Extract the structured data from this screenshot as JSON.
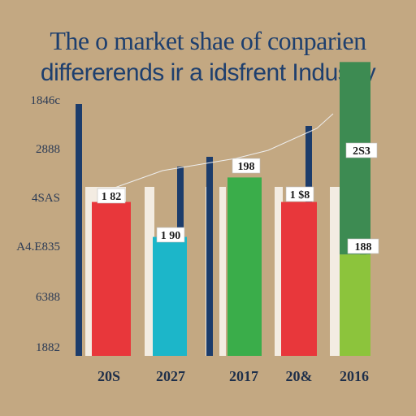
{
  "chart_data": {
    "type": "bar",
    "title_line1": "The o market shae of conparien",
    "title_line2": "differerends ir a idsfrent Industry",
    "y_ticks": [
      "1846c",
      "2888",
      "4SAS",
      "A4.E835",
      "6388",
      "1882"
    ],
    "categories": [
      "20S",
      "2027",
      "2017",
      "20&",
      "2016"
    ],
    "series": [
      {
        "values": [
          44,
          34,
          51,
          44,
          55
        ],
        "color": "#e8373b"
      },
      {
        "values": [
          0,
          34,
          0,
          0,
          0
        ],
        "color": "#1cb6c9"
      },
      {
        "values": [
          0,
          0,
          51,
          0,
          0
        ],
        "color": "#3aad4a"
      },
      {
        "values": [
          0,
          0,
          0,
          0,
          29
        ],
        "color": "#8cc43c"
      },
      {
        "values": [
          0,
          0,
          0,
          0,
          55
        ],
        "color": "#3d8b52"
      }
    ],
    "data_labels": [
      "1 82",
      "1 90",
      "198",
      "1 $8",
      "2S3",
      "188"
    ],
    "ylim": [
      0,
      72
    ],
    "grid": false
  }
}
